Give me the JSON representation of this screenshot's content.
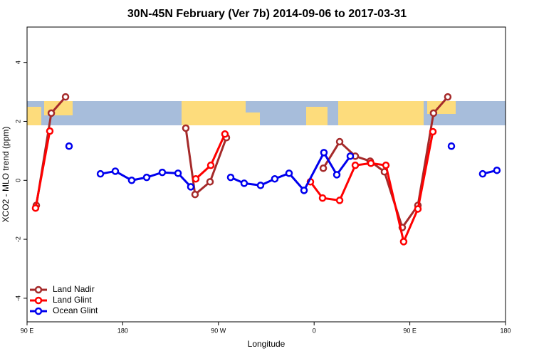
{
  "chart_data": {
    "type": "line",
    "title": "30N-45N February (Ver 7b)   2014-09-06 to 2017-03-31",
    "x_label": "Longitude",
    "y_label": "XCO2 - MLO trend (ppm)",
    "xlim": [
      90,
      540
    ],
    "ylim": [
      -4.8,
      5.2
    ],
    "xticks": [
      {
        "value": 90,
        "label": "90 E"
      },
      180,
      {
        "value": 270,
        "label": "90 W"
      },
      {
        "value": 360,
        "label": "0"
      },
      {
        "value": 450,
        "label": "90 E"
      },
      {
        "value": 540,
        "label": "180"
      }
    ],
    "yticks": [
      -4,
      -2,
      0,
      2,
      4
    ],
    "legend": "bottomleft",
    "series": [
      {
        "name": "Land Nadir",
        "color": "#a52a2a",
        "x": [
          98.7,
          112.8,
          126.2,
          null,
          239.3,
          248,
          262.1,
          277.5,
          null,
          368.6,
          384,
          398.7,
          412.7,
          426.1,
          442.9,
          457.6,
          472.3,
          485.7
        ],
        "values": [
          -0.85,
          2.28,
          2.83,
          null,
          1.77,
          -0.48,
          -0.05,
          1.45,
          null,
          0.41,
          1.31,
          0.82,
          0.65,
          0.29,
          -1.6,
          -0.85,
          2.28,
          2.83
        ]
      },
      {
        "name": "Land Glint",
        "color": "#ff0000",
        "x": [
          98,
          111.4,
          null,
          248.7,
          262.8,
          276.1,
          null,
          356.5,
          367.9,
          384,
          398.7,
          413.4,
          427.5,
          444.2,
          457.6,
          471.7
        ],
        "values": [
          -0.94,
          1.67,
          null,
          0.05,
          0.51,
          1.57,
          null,
          -0.05,
          -0.6,
          -0.68,
          0.51,
          0.58,
          0.51,
          -2.08,
          -0.97,
          1.65
        ]
      },
      {
        "name": "Ocean Glint",
        "color": "#0000ee",
        "x": [
          129.5,
          null,
          159,
          173,
          188.4,
          202.5,
          217.2,
          232,
          244,
          null,
          281.5,
          294.2,
          309.6,
          323,
          336.4,
          350.5,
          369.2,
          381.3,
          394,
          null,
          489.1,
          null,
          518.5,
          531.9
        ],
        "values": [
          1.16,
          null,
          0.22,
          0.31,
          0,
          0.1,
          0.27,
          0.24,
          -0.22,
          null,
          0.1,
          -0.1,
          -0.17,
          0.05,
          0.24,
          -0.34,
          0.94,
          0.19,
          0.82,
          null,
          1.16,
          null,
          0.22,
          0.34
        ]
      }
    ]
  }
}
